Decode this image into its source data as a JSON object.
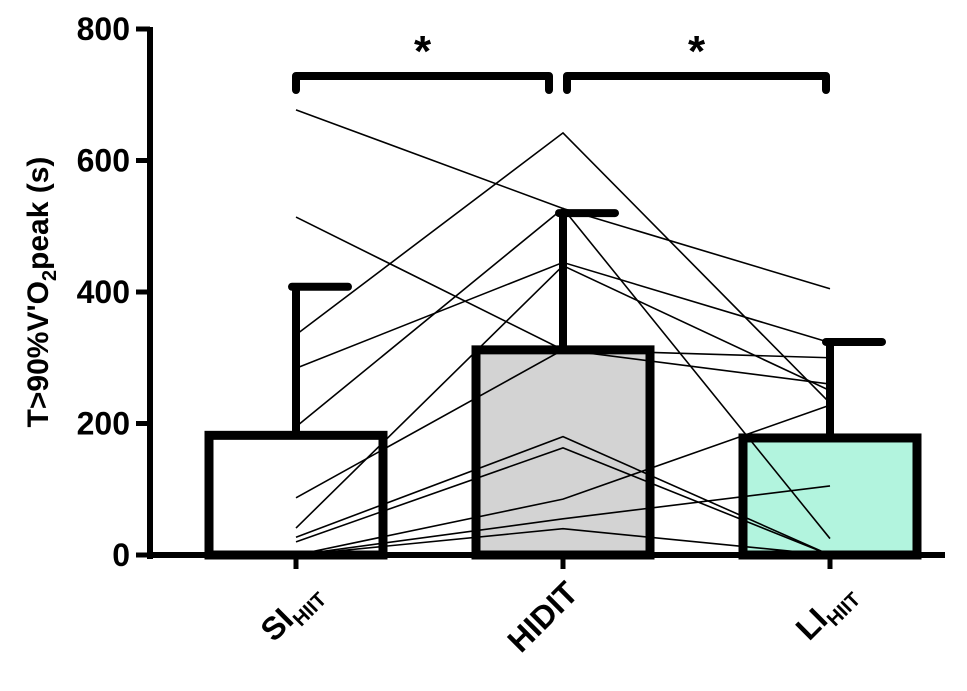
{
  "chart_data": {
    "type": "bar",
    "title": "",
    "xlabel": "",
    "ylabel": {
      "main": "T>90%V'O",
      "sub": "2",
      "rest": "peak (s)"
    },
    "ylim": [
      0,
      800
    ],
    "yticks": [
      0,
      200,
      400,
      600,
      800
    ],
    "grid": false,
    "categories": [
      {
        "main": "SI",
        "sub": "HIIT"
      },
      {
        "main": "HIDIT",
        "sub": ""
      },
      {
        "main": "LI",
        "sub": "HIIT"
      }
    ],
    "bars": [
      {
        "mean": 182,
        "sd_upper": 408,
        "fill": "#ffffff"
      },
      {
        "mean": 312,
        "sd_upper": 520,
        "fill": "#d3d3d3"
      },
      {
        "mean": 178,
        "sd_upper": 324,
        "fill": "#b2f4de"
      }
    ],
    "individuals": [
      [
        677,
        527,
        405
      ],
      [
        514,
        312,
        260
      ],
      [
        335,
        642,
        231
      ],
      [
        284,
        445,
        323
      ],
      [
        195,
        527,
        25
      ],
      [
        87,
        312,
        300
      ],
      [
        41,
        440,
        250
      ],
      [
        27,
        180,
        0
      ],
      [
        20,
        163,
        0
      ],
      [
        0,
        85,
        228
      ],
      [
        0,
        55,
        105
      ],
      [
        0,
        40,
        0
      ]
    ],
    "significance": [
      {
        "from": 0,
        "to": 1,
        "label": "*"
      },
      {
        "from": 1,
        "to": 2,
        "label": "*"
      }
    ]
  }
}
